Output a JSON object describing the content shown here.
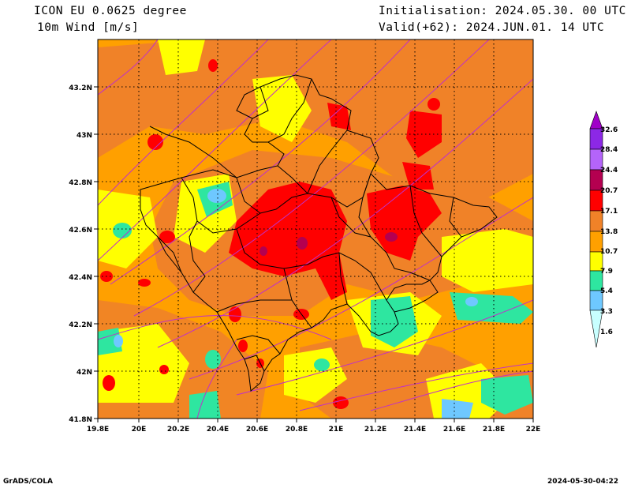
{
  "header": {
    "model": "ICON EU 0.0625 degree",
    "variable": "10m Wind [m/s]",
    "init": "Initialisation: 2024.05.30. 00 UTC",
    "valid": "Valid(+62): 2024.JUN.01. 14 UTC"
  },
  "footer": {
    "left": "GrADS/COLA",
    "right": "2024-05-30-04:22"
  },
  "map": {
    "lon_ticks": [
      "19.8E",
      "20E",
      "20.2E",
      "20.4E",
      "20.6E",
      "20.8E",
      "21E",
      "21.2E",
      "21.4E",
      "21.6E",
      "21.8E",
      "22E"
    ],
    "lat_ticks": [
      "43.2N",
      "43N",
      "42.8N",
      "42.6N",
      "42.4N",
      "42.2N",
      "42N",
      "41.8N"
    ]
  },
  "legend": {
    "labels": [
      "32.6",
      "28.4",
      "24.4",
      "20.7",
      "17.1",
      "13.8",
      "10.7",
      "7.9",
      "5.4",
      "3.3",
      "1.6"
    ],
    "colors": [
      "#a000c8",
      "#8c28e6",
      "#b464fa",
      "#b40050",
      "#ff0000",
      "#f08228",
      "#ffa000",
      "#ffff00",
      "#2ee6a0",
      "#6ec8ff",
      "#c8ffff"
    ]
  }
}
